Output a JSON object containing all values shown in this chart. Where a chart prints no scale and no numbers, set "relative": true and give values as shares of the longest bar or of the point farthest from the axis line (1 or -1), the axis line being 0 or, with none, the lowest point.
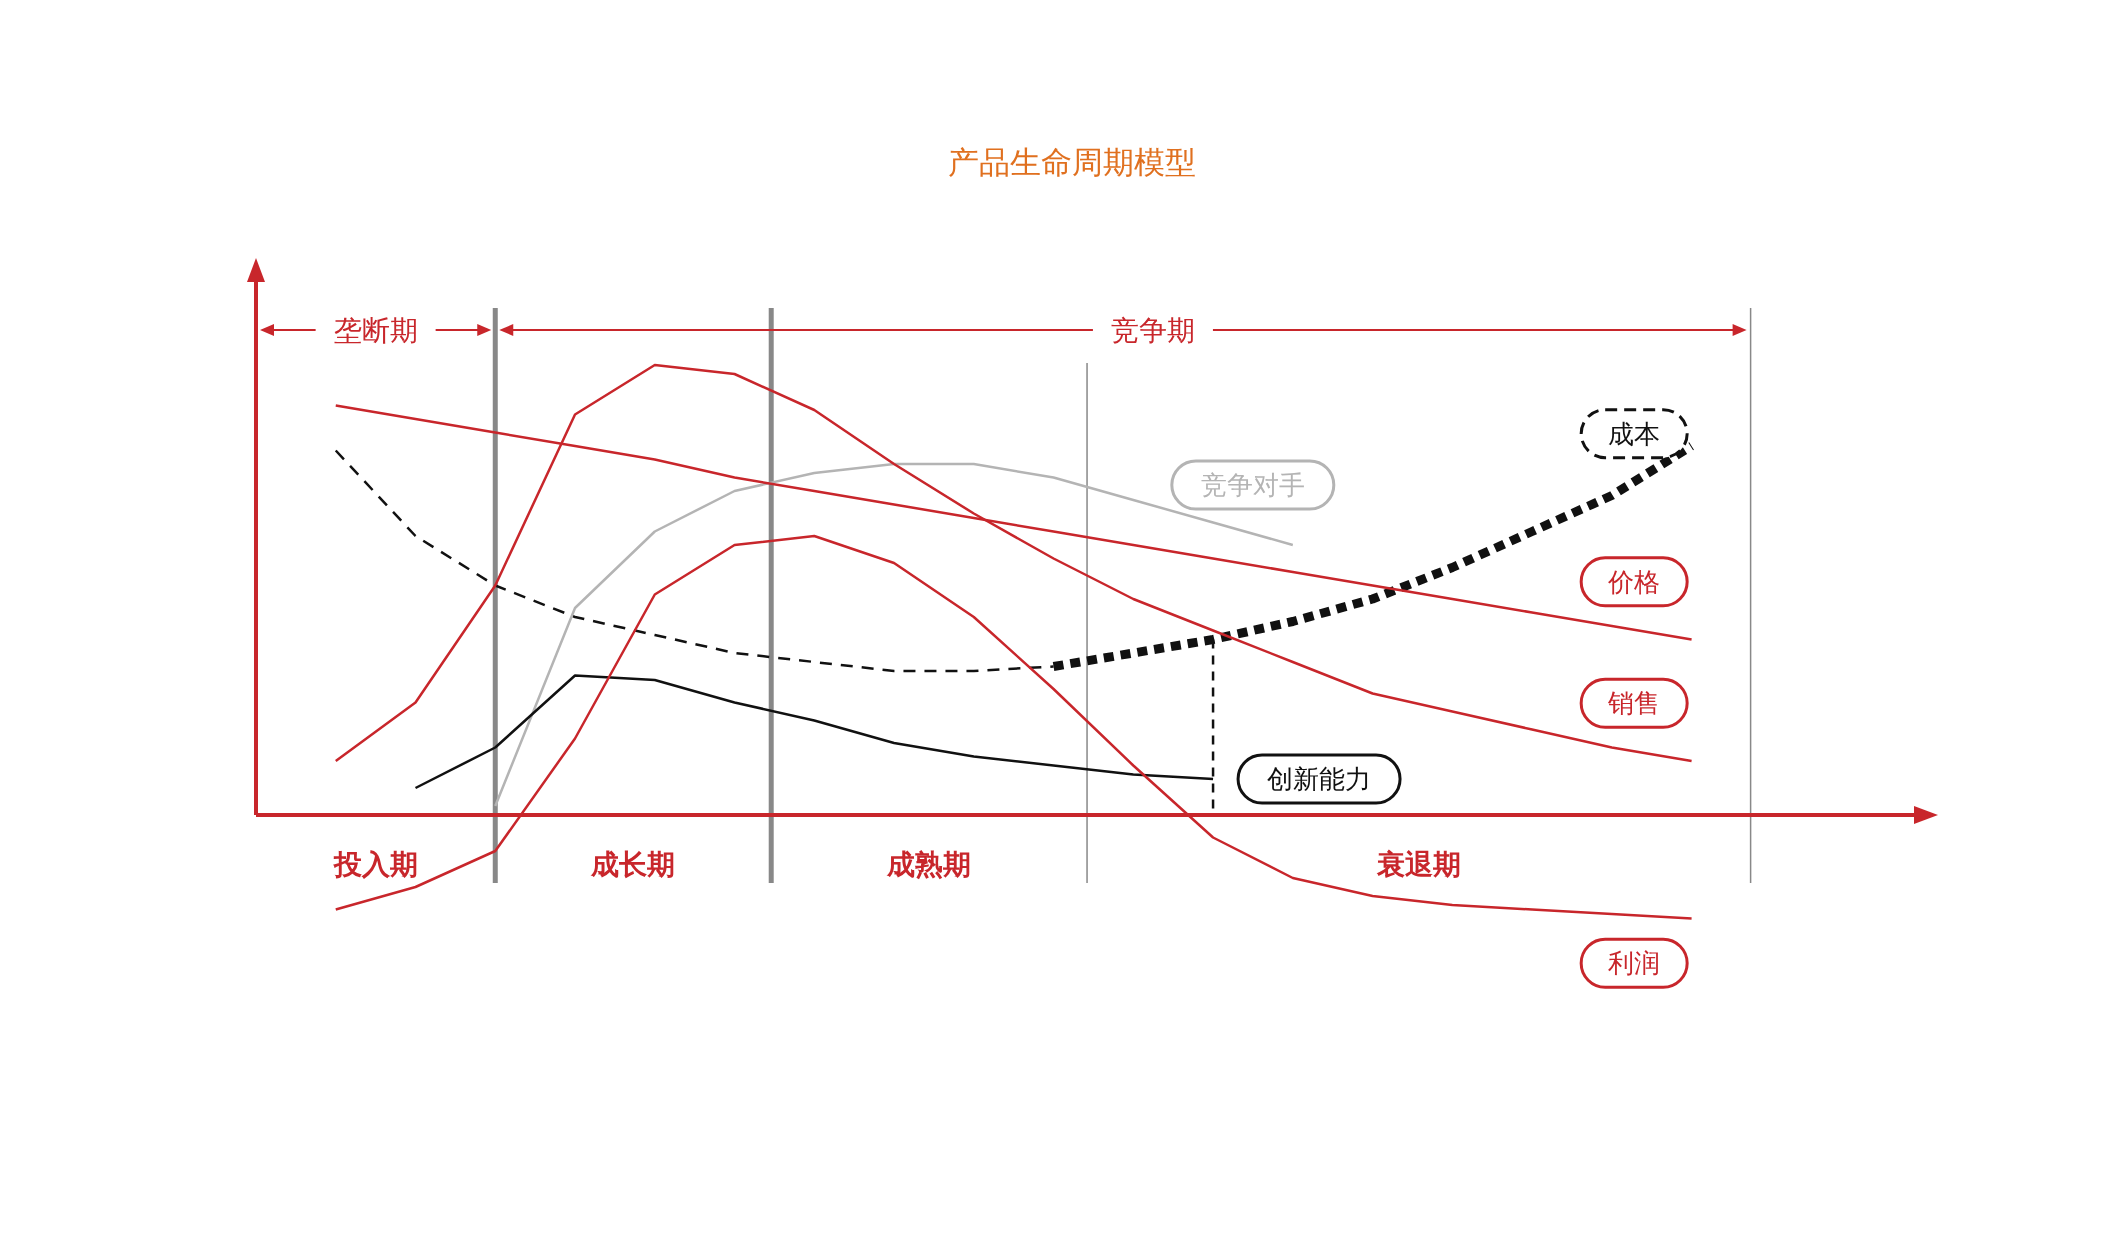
{
  "chart_data": {
    "type": "line",
    "title": "产品生命周期模型",
    "relative": true,
    "legend": false,
    "categories": [
      null,
      null,
      null,
      null,
      null,
      null,
      null,
      null,
      null,
      null,
      null,
      null,
      null,
      null,
      null,
      null,
      null,
      null,
      null,
      null
    ],
    "series": [
      {
        "color": "#111111",
        "line_style": "dashed",
        "values": [
          null,
          0.81,
          0.62,
          0.51,
          0.44,
          0.4,
          0.36,
          0.34,
          0.32,
          0.32,
          0.33,
          null,
          null,
          null,
          null,
          null,
          null,
          null,
          null,
          null
        ]
      },
      {
        "name": "成本",
        "color": "#111111",
        "line_style": "dotted",
        "values": [
          null,
          null,
          null,
          null,
          null,
          null,
          null,
          null,
          null,
          null,
          0.33,
          0.36,
          0.39,
          0.43,
          0.48,
          0.55,
          0.63,
          0.71,
          0.82,
          null
        ]
      },
      {
        "name": "竞争对手",
        "color": "#b4b4b4",
        "line_style": "solid",
        "values": [
          null,
          null,
          null,
          0.02,
          0.46,
          0.63,
          0.72,
          0.76,
          0.78,
          0.78,
          0.75,
          0.7,
          0.65,
          0.6,
          null,
          null,
          null,
          null,
          null,
          null
        ]
      },
      {
        "name": "价格",
        "color": "#c8262b",
        "line_style": "solid",
        "values": [
          null,
          0.91,
          0.88,
          0.85,
          0.82,
          0.79,
          0.75,
          0.72,
          0.69,
          0.66,
          0.63,
          0.6,
          0.57,
          0.54,
          0.51,
          0.48,
          0.45,
          0.42,
          0.39,
          null
        ]
      },
      {
        "name": "销售",
        "color": "#c8262b",
        "line_style": "solid",
        "values": [
          null,
          0.12,
          0.25,
          0.51,
          0.89,
          1.0,
          0.98,
          0.9,
          0.78,
          0.67,
          0.57,
          0.48,
          0.41,
          0.34,
          0.27,
          0.23,
          0.19,
          0.15,
          0.12,
          null
        ]
      },
      {
        "name": "创新能力",
        "color": "#111111",
        "line_style": "solid",
        "values": [
          null,
          null,
          0.06,
          0.15,
          0.31,
          0.3,
          0.25,
          0.21,
          0.16,
          0.13,
          0.11,
          0.09,
          0.08,
          null,
          null,
          null,
          null,
          null,
          null,
          null
        ]
      },
      {
        "name": "利润",
        "color": "#c8262b",
        "line_style": "solid",
        "values": [
          null,
          -0.21,
          -0.16,
          -0.08,
          0.17,
          0.49,
          0.6,
          0.62,
          0.56,
          0.44,
          0.28,
          0.11,
          -0.05,
          -0.14,
          -0.18,
          -0.2,
          -0.21,
          -0.22,
          -0.23,
          null
        ]
      }
    ],
    "ref_lines": [
      {
        "axis": "y",
        "value": 0,
        "color": "#c8262b"
      }
    ],
    "annotations": [
      "投入期",
      "成长期",
      "成熟期",
      "衰退期",
      "垄断期",
      "竞争期"
    ]
  }
}
